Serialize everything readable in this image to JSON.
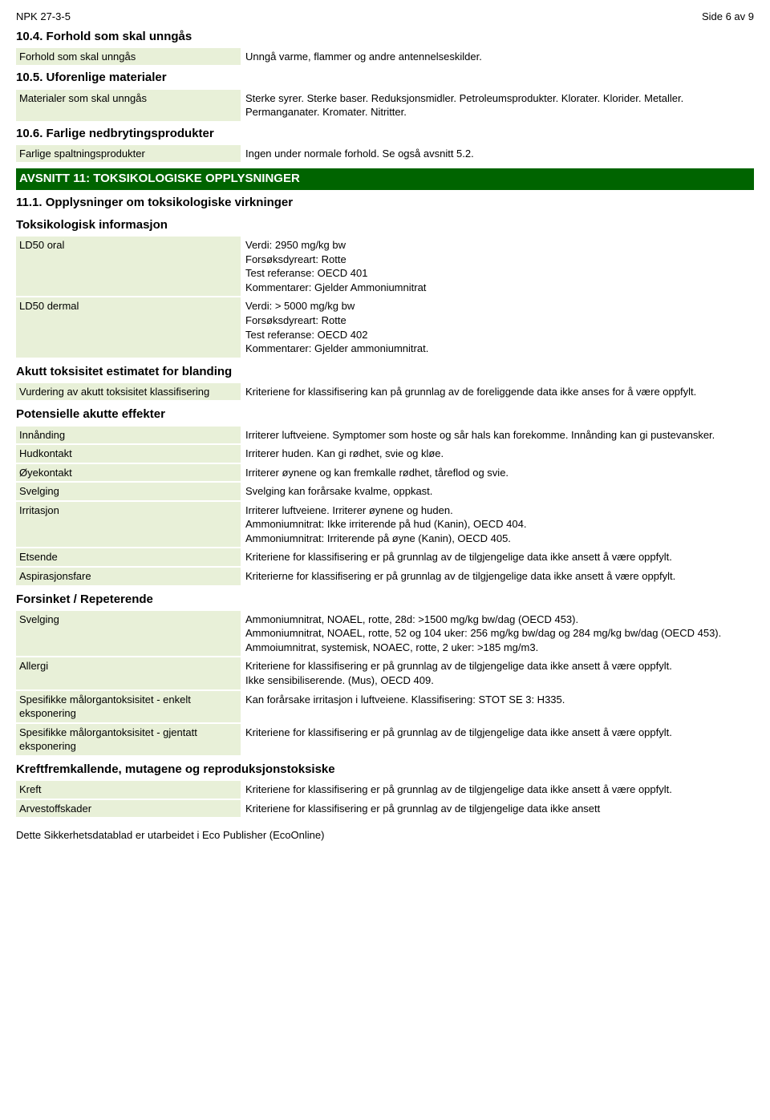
{
  "header": {
    "doc_id": "NPK 27-3-5",
    "page_label": "Side 6 av 9"
  },
  "s10_4": {
    "heading": "10.4. Forhold som skal unngås",
    "rows": [
      {
        "label": "Forhold som skal unngås",
        "value": [
          "Unngå varme, flammer og andre antennelseskilder."
        ]
      }
    ]
  },
  "s10_5": {
    "heading": "10.5. Uforenlige materialer",
    "rows": [
      {
        "label": "Materialer som skal unngås",
        "value": [
          "Sterke syrer. Sterke baser. Reduksjonsmidler. Petroleumsprodukter. Klorater. Klorider. Metaller. Permanganater. Kromater. Nitritter."
        ]
      }
    ]
  },
  "s10_6": {
    "heading": "10.6. Farlige nedbrytingsprodukter",
    "rows": [
      {
        "label": "Farlige spaltningsprodukter",
        "value": [
          "Ingen under normale forhold. Se også avsnitt 5.2."
        ]
      }
    ]
  },
  "s11_banner": "AVSNITT 11: TOKSIKOLOGISKE OPPLYSNINGER",
  "s11_1": {
    "heading": "11.1. Opplysninger om toksikologiske virkninger",
    "tox_info_heading": "Toksikologisk informasjon",
    "tox_rows": [
      {
        "label": "LD50 oral",
        "value": [
          "Verdi: 2950 mg/kg bw",
          "Forsøksdyreart: Rotte",
          "Test referanse: OECD 401",
          "Kommentarer: Gjelder Ammoniumnitrat"
        ]
      },
      {
        "label": "LD50 dermal",
        "value": [
          "Verdi: > 5000 mg/kg bw",
          "Forsøksdyreart: Rotte",
          "Test referanse: OECD 402",
          "Kommentarer: Gjelder ammoniumnitrat."
        ]
      }
    ],
    "acute_heading": "Akutt toksisitet estimatet for blanding",
    "acute_rows": [
      {
        "label": "Vurdering av akutt toksisitet klassifisering",
        "value": [
          "Kriteriene for klassifisering kan på grunnlag av de foreliggende data ikke anses for å være oppfylt."
        ]
      }
    ],
    "potential_heading": "Potensielle akutte effekter",
    "potential_rows": [
      {
        "label": "Innånding",
        "value": [
          "Irriterer luftveiene. Symptomer som hoste og sår hals kan forekomme. Innånding kan gi pustevansker."
        ]
      },
      {
        "label": "Hudkontakt",
        "value": [
          "Irriterer huden. Kan gi rødhet, svie og kløe."
        ]
      },
      {
        "label": "Øyekontakt",
        "value": [
          "Irriterer øynene og kan fremkalle rødhet, tåreflod og svie."
        ]
      },
      {
        "label": "Svelging",
        "value": [
          "Svelging kan forårsake kvalme, oppkast."
        ]
      },
      {
        "label": "Irritasjon",
        "value": [
          "Irriterer luftveiene. Irriterer øynene og huden.",
          "Ammoniumnitrat: Ikke irriterende på hud (Kanin), OECD 404.",
          "Ammoniumnitrat: Irriterende på øyne (Kanin), OECD 405."
        ]
      },
      {
        "label": "Etsende",
        "value": [
          "Kriteriene for klassifisering er på grunnlag av de tilgjengelige data ikke ansett å være oppfylt."
        ]
      },
      {
        "label": "Aspirasjonsfare",
        "value": [
          "Kriterierne for klassifisering er på grunnlag av de tilgjengelige data ikke ansett å være oppfylt."
        ]
      }
    ],
    "delayed_heading": "Forsinket / Repeterende",
    "delayed_rows": [
      {
        "label": "Svelging",
        "value": [
          "Ammoniumnitrat, NOAEL, rotte, 28d: >1500 mg/kg bw/dag (OECD 453).",
          "Ammoniumnitrat, NOAEL, rotte, 52 og 104 uker: 256 mg/kg bw/dag og 284 mg/kg bw/dag (OECD 453).",
          "Ammoiumnitrat, systemisk, NOAEC, rotte, 2 uker: >185 mg/m3."
        ]
      },
      {
        "label": "Allergi",
        "value": [
          "Kriteriene for klassifisering er på grunnlag av de tilgjengelige data ikke ansett å være oppfylt.",
          "Ikke sensibiliserende. (Mus), OECD 409."
        ]
      },
      {
        "label": "Spesifikke målorgantoksisitet - enkelt eksponering",
        "value": [
          "Kan forårsake irritasjon i luftveiene. Klassifisering: STOT SE 3: H335."
        ]
      },
      {
        "label": "Spesifikke målorgantoksisitet - gjentatt eksponering",
        "value": [
          "Kriteriene for klassifisering er på grunnlag av de tilgjengelige data ikke ansett å være oppfylt."
        ]
      }
    ],
    "cmr_heading": "Kreftfremkallende, mutagene og reproduksjonstoksiske",
    "cmr_rows": [
      {
        "label": "Kreft",
        "value": [
          "Kriteriene for klassifisering er på grunnlag av de tilgjengelige data ikke ansett å være oppfylt."
        ]
      },
      {
        "label": "Arvestoffskader",
        "value": [
          "Kriteriene for klassifisering er på grunnlag av de tilgjengelige data ikke ansett"
        ]
      }
    ]
  },
  "footer": "Dette Sikkerhetsdatablad er utarbeidet i Eco Publisher (EcoOnline)"
}
